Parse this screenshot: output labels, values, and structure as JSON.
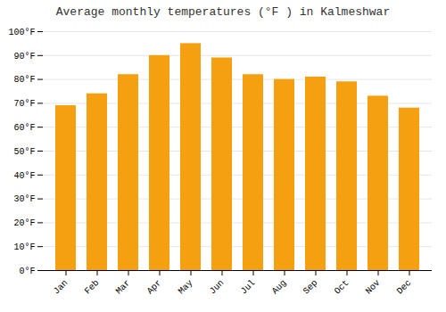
{
  "chart_data": {
    "type": "bar",
    "title": "Average monthly temperatures (°F ) in Kalmeshwar",
    "categories": [
      "Jan",
      "Feb",
      "Mar",
      "Apr",
      "May",
      "Jun",
      "Jul",
      "Aug",
      "Sep",
      "Oct",
      "Nov",
      "Dec"
    ],
    "values": [
      69,
      74,
      82,
      90,
      95,
      89,
      82,
      80,
      81,
      79,
      73,
      68
    ],
    "color": "#F5A010",
    "ylim": [
      0,
      100
    ],
    "yticks": [
      {
        "value": 0,
        "label": "0°F"
      },
      {
        "value": 10,
        "label": "10°F"
      },
      {
        "value": 20,
        "label": "20°F"
      },
      {
        "value": 30,
        "label": "30°F"
      },
      {
        "value": 40,
        "label": "40°F"
      },
      {
        "value": 50,
        "label": "50°F"
      },
      {
        "value": 60,
        "label": "60°F"
      },
      {
        "value": 70,
        "label": "70°F"
      },
      {
        "value": 80,
        "label": "80°F"
      },
      {
        "value": 90,
        "label": "90°F"
      },
      {
        "value": 100,
        "label": "100°F"
      }
    ],
    "grid": true
  }
}
